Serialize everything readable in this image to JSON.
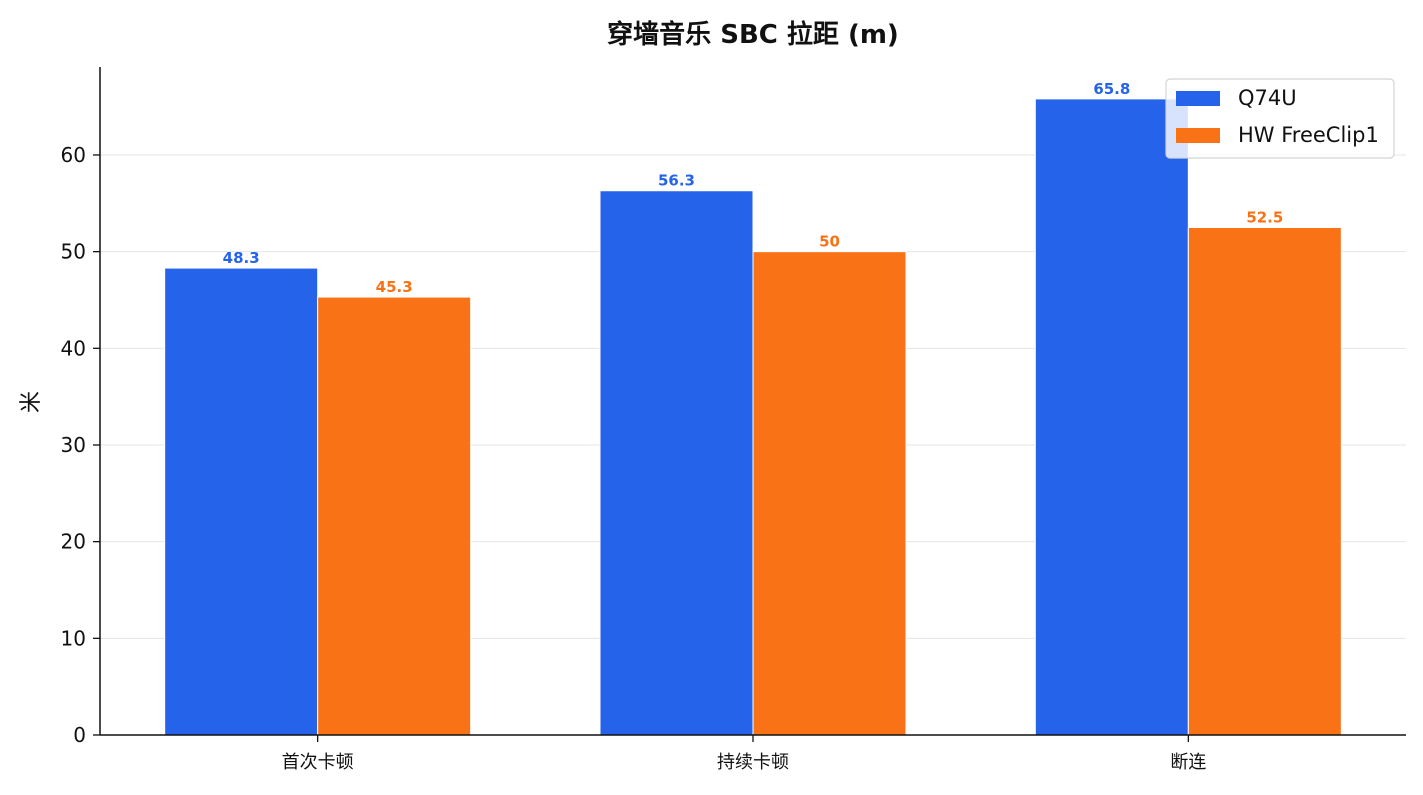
{
  "chart_data": {
    "type": "bar",
    "title": "穿墙音乐 SBC 拉距 (m)",
    "xlabel": "",
    "ylabel": "米",
    "categories": [
      "首次卡顿",
      "持续卡顿",
      "断连"
    ],
    "series": [
      {
        "name": "Q74U",
        "values": [
          48.3,
          56.3,
          65.8
        ],
        "color": "#2563eb",
        "labels": [
          "48.3",
          "56.3",
          "65.8"
        ]
      },
      {
        "name": "HW FreeClip1",
        "values": [
          45.3,
          50,
          52.5
        ],
        "color": "#f97316",
        "labels": [
          "45.3",
          "50",
          "52.5"
        ]
      }
    ],
    "ylim": [
      0,
      69.1
    ],
    "yticks": [
      0,
      10,
      20,
      30,
      40,
      50,
      60
    ],
    "grid": "y",
    "legend": "top-right"
  }
}
